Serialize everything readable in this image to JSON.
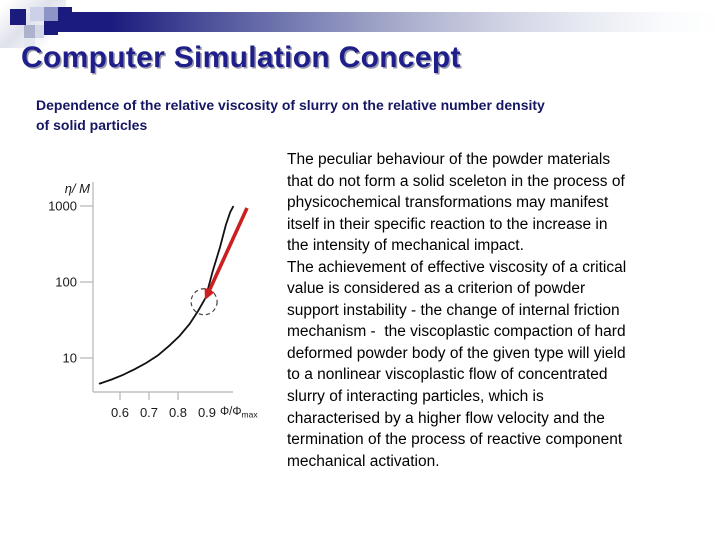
{
  "slide": {
    "title": "Computer Simulation Concept",
    "subtitle": "Dependence of the relative viscosity of slurry on the relative number density\nof solid particles",
    "body_text": "The peculiar behaviour of the powder materials\nthat do not form a solid sceleton in the process of\nphysicochemical transformations may manifest\nitself in their specific reaction to the increase in\nthe intensity of mechanical impact.\nThe achievement of effective viscosity of a critical\nvalue is considered as a criterion of powder\nsupport instability - the change of internal friction\nmechanism -  the viscoplastic compaction of hard\ndeformed powder body of the given type will yield\nto a nonlinear viscoplastic flow of concentrated\nslurry of interacting particles, which is\ncharacterised by a higher flow velocity and the\ntermination of the process of reactive component\nmechanical activation."
  },
  "colors": {
    "title_text": "#1f1f8c",
    "title_shadow": "#9a9aac",
    "subtitle_text": "#161663",
    "body_text": "#000000",
    "accent_bar_navy": "#1b1b7e",
    "arrow_red": "#cc2020"
  },
  "chart_data": {
    "type": "line",
    "y_scale": "log",
    "ylabel": "η/ M",
    "xlabel": "Φ/Φ",
    "xlabel_sub": "max",
    "x_tick_values": [
      0.6,
      0.7,
      0.8,
      0.9
    ],
    "x_tick_labels": [
      "0.6",
      "0.7",
      "0.8",
      "0.9"
    ],
    "x_tick_marks": [
      0.6,
      0.7,
      0.8
    ],
    "y_tick_values": [
      1000,
      100,
      10
    ],
    "y_tick_labels": [
      "1000",
      "100",
      "10"
    ],
    "x_range": [
      0.51,
      1.0
    ],
    "y_range": [
      3.6,
      2100
    ],
    "grid": false,
    "legend": false,
    "series": [
      {
        "name": "relative viscosity of slurry vs relative number density of solid particles",
        "x": [
          0.53,
          0.57,
          0.61,
          0.65,
          0.69,
          0.73,
          0.77,
          0.805,
          0.84,
          0.87,
          0.895,
          0.92,
          0.945,
          0.965,
          0.98,
          0.99
        ],
        "y": [
          4.6,
          5.2,
          6.0,
          7.1,
          8.6,
          10.8,
          14.5,
          19.5,
          28,
          42,
          62,
          140,
          290,
          560,
          830,
          980
        ]
      }
    ],
    "annotations": {
      "arrow": {
        "from_x": 1.038,
        "from_y": 940,
        "to_x": 0.893,
        "to_y": 58,
        "color": "#cc2020"
      },
      "dashed_circle": {
        "x": 0.89,
        "y": 55,
        "radius_px": 13
      }
    },
    "axis_color": "#b4b4b4",
    "curve_color": "#111111",
    "label_color": "#1a1a1a"
  }
}
